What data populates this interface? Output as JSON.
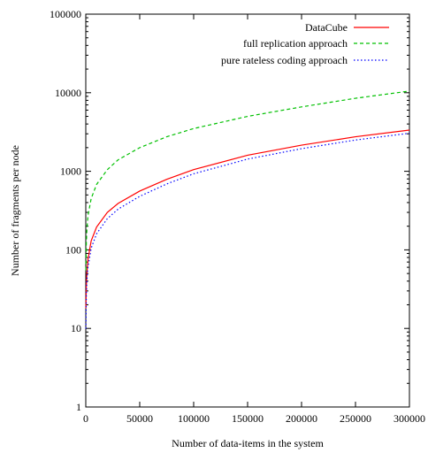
{
  "chart_data": {
    "type": "line",
    "title": "",
    "xlabel": "Number of data-items in the system",
    "ylabel": "Number of fragments  per node",
    "xlim": [
      0,
      300000
    ],
    "ylim": [
      1,
      100000
    ],
    "y_scale": "log",
    "grid": false,
    "legend_placement": "top-right",
    "x_ticks": [
      0,
      50000,
      100000,
      150000,
      200000,
      250000,
      300000
    ],
    "x_tick_labels": [
      "0",
      "50000",
      "100000",
      "150000",
      "200000",
      "250000",
      "300000"
    ],
    "y_ticks": [
      1,
      10,
      100,
      1000,
      10000,
      100000
    ],
    "y_tick_labels": [
      "1",
      "10",
      "100",
      "1000",
      "10000",
      "100000"
    ],
    "series": [
      {
        "name": "DataCube",
        "color": "#ff0000",
        "dash": "solid",
        "x": [
          100,
          500,
          1000,
          2000,
          5000,
          10000,
          20000,
          30000,
          50000,
          75000,
          100000,
          150000,
          200000,
          250000,
          300000
        ],
        "y": [
          18,
          34,
          50,
          75,
          130,
          195,
          300,
          390,
          560,
          790,
          1050,
          1600,
          2150,
          2750,
          3350
        ]
      },
      {
        "name": "full replication  approach",
        "color": "#00c000",
        "dash": "dashed",
        "x": [
          100,
          500,
          1000,
          2000,
          5000,
          10000,
          20000,
          30000,
          50000,
          75000,
          100000,
          150000,
          200000,
          250000,
          300000
        ],
        "y": [
          55,
          120,
          180,
          270,
          450,
          680,
          1050,
          1400,
          2000,
          2750,
          3500,
          5000,
          6600,
          8500,
          10500
        ]
      },
      {
        "name": "pure rateless coding approach",
        "color": "#0000ff",
        "dash": "dotted",
        "x": [
          100,
          500,
          1000,
          2000,
          5000,
          10000,
          20000,
          30000,
          50000,
          75000,
          100000,
          150000,
          200000,
          250000,
          300000
        ],
        "y": [
          10,
          25,
          40,
          60,
          105,
          160,
          250,
          330,
          480,
          690,
          930,
          1430,
          1940,
          2500,
          3050
        ]
      }
    ]
  }
}
